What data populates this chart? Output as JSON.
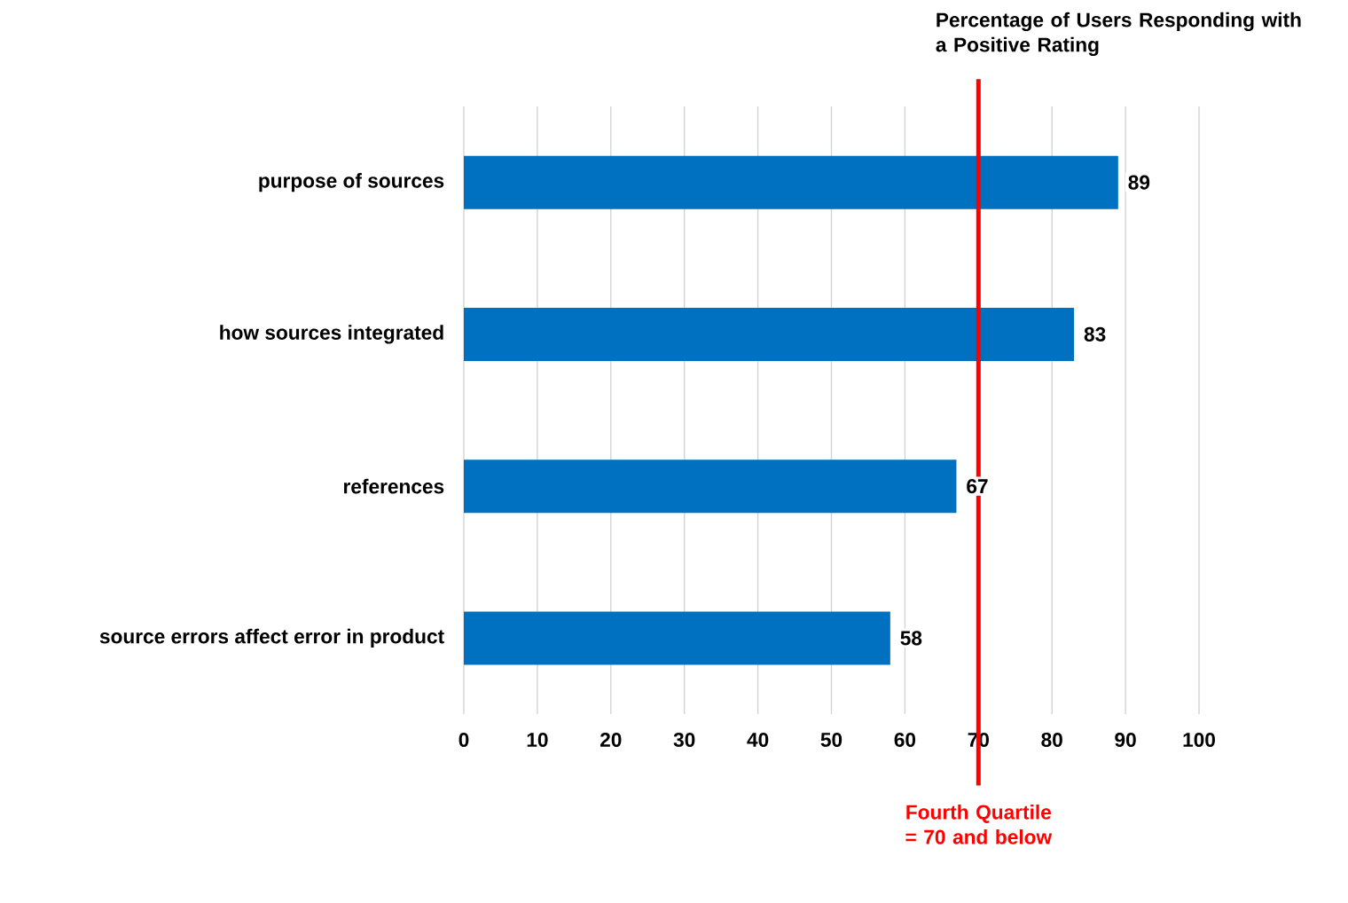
{
  "chart_data": {
    "type": "bar",
    "orientation": "horizontal",
    "title": "Percentage of Users Responding with a Positive Rating",
    "categories": [
      "purpose of sources",
      "how sources integrated",
      "references",
      "source errors affect error in product"
    ],
    "values": [
      89,
      83,
      67,
      58
    ],
    "color": "#0070c0",
    "xlim": [
      0,
      100
    ],
    "xticks": [
      0,
      10,
      20,
      30,
      40,
      50,
      60,
      70,
      80,
      90,
      100
    ],
    "grid": "x",
    "data_labels": true,
    "ref_lines": [
      {
        "axis": "x",
        "value": 70,
        "label": "Fourth Quartile = 70 and below",
        "color": "#ff0000"
      }
    ]
  }
}
